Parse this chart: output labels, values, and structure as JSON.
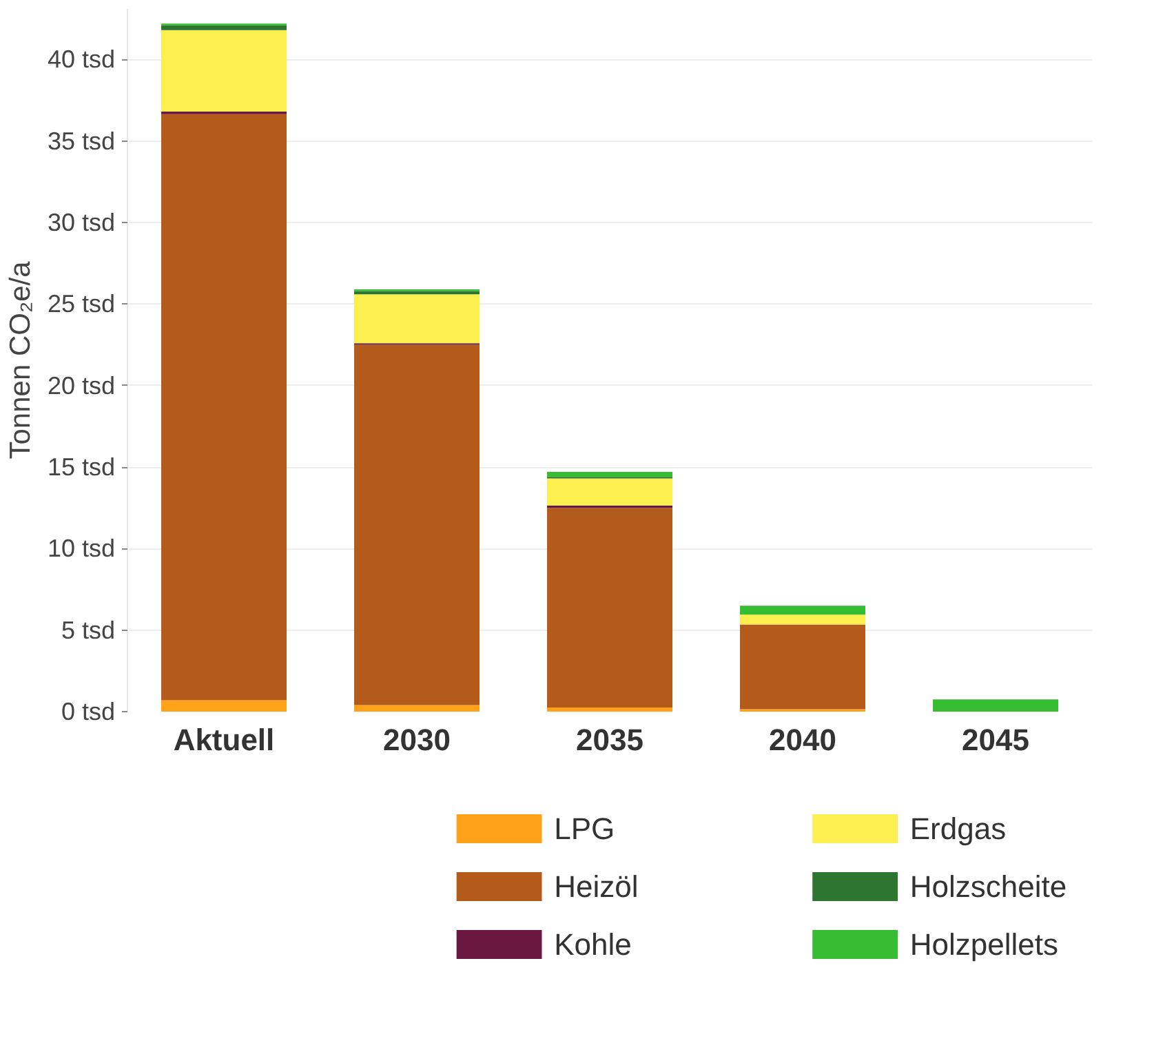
{
  "chart_data": {
    "type": "bar",
    "stacked": true,
    "ylabel": "Tonnen CO₂e/a",
    "categories": [
      "Aktuell",
      "2030",
      "2035",
      "2040",
      "2045"
    ],
    "series": [
      {
        "name": "LPG",
        "color": "#ffa21a",
        "values": [
          0.7,
          0.4,
          0.25,
          0.15,
          null
        ]
      },
      {
        "name": "Heizöl",
        "color": "#b45b1c",
        "values": [
          35.95,
          22.1,
          12.25,
          5.2,
          null
        ]
      },
      {
        "name": "Kohle",
        "color": "#6b1840",
        "values": [
          0.15,
          0.1,
          0.15,
          null,
          null
        ]
      },
      {
        "name": "Erdgas",
        "color": "#fbf050",
        "values": [
          5.0,
          3.0,
          1.65,
          0.6,
          null
        ]
      },
      {
        "name": "Holzscheite",
        "color": "#2e7530",
        "values": [
          0.3,
          0.2,
          0.1,
          null,
          null
        ]
      },
      {
        "name": "Holzpellets",
        "color": "#36bd33",
        "values": [
          0.1,
          0.1,
          0.3,
          0.55,
          0.75
        ]
      }
    ],
    "ylim": [
      0,
      43.1
    ],
    "yticks": [
      {
        "value": 0,
        "label": "0 tsd"
      },
      {
        "value": 5,
        "label": "5 tsd"
      },
      {
        "value": 10,
        "label": "10 tsd"
      },
      {
        "value": 15,
        "label": "15 tsd"
      },
      {
        "value": 20,
        "label": "20 tsd"
      },
      {
        "value": 25,
        "label": "25 tsd"
      },
      {
        "value": 30,
        "label": "30 tsd"
      },
      {
        "value": 35,
        "label": "35 tsd"
      },
      {
        "value": 40,
        "label": "40 tsd"
      }
    ],
    "grid": "y",
    "legend": "bottom"
  }
}
